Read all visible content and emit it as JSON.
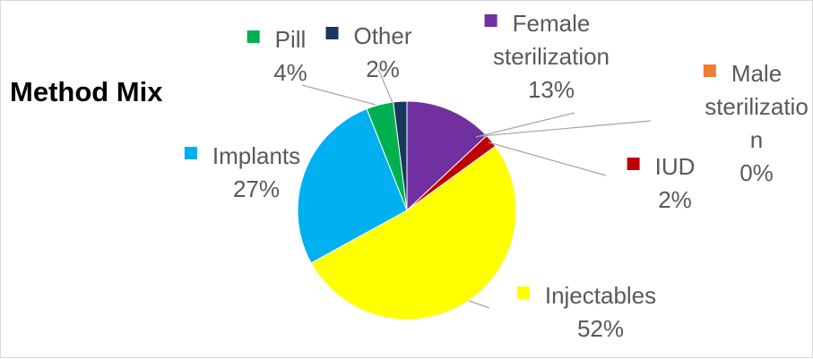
{
  "chart_data": {
    "type": "pie",
    "title": "Method Mix",
    "slices": [
      {
        "name": "Female sterilization",
        "name_lines": [
          "Female",
          "sterilization"
        ],
        "value": 13,
        "label": "13%",
        "color": "#7030A0"
      },
      {
        "name": "Male sterilization",
        "name_lines": [
          "Male",
          "sterilizatio",
          "n"
        ],
        "value": 0,
        "label": "0%",
        "color": "#ED7D31"
      },
      {
        "name": "IUD",
        "name_lines": [
          "IUD"
        ],
        "value": 2,
        "label": "2%",
        "color": "#C00000"
      },
      {
        "name": "Injectables",
        "name_lines": [
          "Injectables"
        ],
        "value": 52,
        "label": "52%",
        "color": "#FFFF00"
      },
      {
        "name": "Implants",
        "name_lines": [
          "Implants"
        ],
        "value": 27,
        "label": "27%",
        "color": "#00B0F0"
      },
      {
        "name": "Pill",
        "name_lines": [
          "Pill"
        ],
        "value": 4,
        "label": "4%",
        "color": "#00B050"
      },
      {
        "name": "Other",
        "name_lines": [
          "Other"
        ],
        "value": 2,
        "label": "2%",
        "color": "#17375E"
      }
    ],
    "legend": "none",
    "data_labels": "category name and percentage with leader lines"
  }
}
